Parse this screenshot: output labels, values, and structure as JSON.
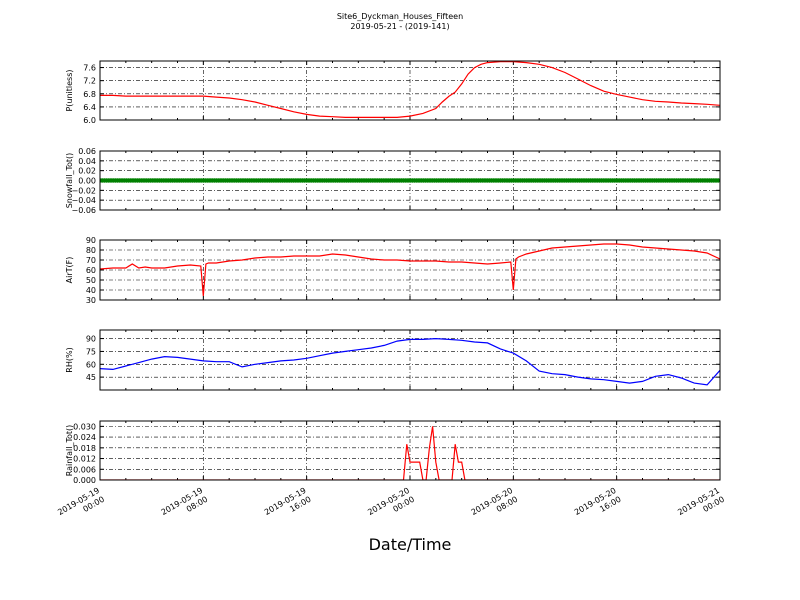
{
  "figure": {
    "title_line1": "Site6_Dyckman_Houses_Fifteen",
    "title_line2": "2019-05-21 - (2019-141)",
    "xlabel": "Date/Time",
    "x_ticks": [
      {
        "line1": "2019-05-19",
        "line2": "00:00"
      },
      {
        "line1": "2019-05-19",
        "line2": "08:00"
      },
      {
        "line1": "2019-05-19",
        "line2": "16:00"
      },
      {
        "line1": "2019-05-20",
        "line2": "00:00"
      },
      {
        "line1": "2019-05-20",
        "line2": "08:00"
      },
      {
        "line1": "2019-05-20",
        "line2": "16:00"
      },
      {
        "line1": "2019-05-21",
        "line2": "00:00"
      }
    ]
  },
  "chart_data": [
    {
      "type": "line",
      "ylabel": "P(unitless)",
      "ylim": [
        6.0,
        7.8
      ],
      "yticks": [
        6.0,
        6.4,
        6.8,
        7.2,
        7.6
      ],
      "ytick_labels": [
        "6.0",
        "6.4",
        "6.8",
        "7.2",
        "7.6"
      ],
      "xlim_hours": [
        0,
        48
      ],
      "color": "#ff0000",
      "grid": true,
      "x": [
        0,
        1,
        2,
        4,
        6,
        8,
        9,
        10,
        11,
        12,
        13,
        14,
        15,
        16,
        17,
        18,
        19,
        20,
        21,
        22,
        23,
        24,
        25,
        26,
        26.5,
        27,
        27.5,
        28,
        28.5,
        29,
        29.5,
        30,
        31,
        32,
        33,
        34,
        35,
        36,
        37,
        38,
        39,
        40,
        41,
        42,
        43,
        44,
        45,
        46,
        47,
        48
      ],
      "y": [
        6.75,
        6.75,
        6.73,
        6.73,
        6.73,
        6.73,
        6.7,
        6.67,
        6.62,
        6.55,
        6.45,
        6.35,
        6.25,
        6.17,
        6.12,
        6.1,
        6.08,
        6.08,
        6.08,
        6.08,
        6.08,
        6.12,
        6.2,
        6.35,
        6.55,
        6.72,
        6.85,
        7.1,
        7.4,
        7.6,
        7.7,
        7.75,
        7.78,
        7.78,
        7.75,
        7.7,
        7.6,
        7.45,
        7.25,
        7.05,
        6.88,
        6.78,
        6.7,
        6.62,
        6.57,
        6.55,
        6.52,
        6.5,
        6.48,
        6.45
      ]
    },
    {
      "type": "scatter",
      "ylabel": "Snowfall_Tot()",
      "ylim": [
        -0.06,
        0.06
      ],
      "yticks": [
        -0.06,
        -0.04,
        -0.02,
        0.0,
        0.02,
        0.04,
        0.06
      ],
      "ytick_labels": [
        "−0.06",
        "−0.04",
        "−0.02",
        "0.00",
        "0.02",
        "0.04",
        "0.06"
      ],
      "xlim_hours": [
        0,
        48
      ],
      "color": "#008000",
      "grid": true,
      "x": [
        0,
        48
      ],
      "y": [
        0,
        0
      ],
      "series_note_constant": 0.0
    },
    {
      "type": "line",
      "ylabel": "AirT(F)",
      "ylim": [
        30,
        90
      ],
      "yticks": [
        30,
        40,
        50,
        60,
        70,
        80,
        90
      ],
      "ytick_labels": [
        "30",
        "40",
        "50",
        "60",
        "70",
        "80",
        "90"
      ],
      "xlim_hours": [
        0,
        48
      ],
      "color": "#ff0000",
      "grid": true,
      "x": [
        0,
        1,
        2,
        2.5,
        3,
        3.5,
        4,
        5,
        6,
        7,
        7.8,
        8.0,
        8.2,
        8.4,
        9,
        10,
        11,
        12,
        13,
        14,
        15,
        16,
        17,
        18,
        19,
        20,
        21,
        22,
        23,
        24,
        25,
        26,
        27,
        28,
        29,
        30,
        31,
        31.8,
        32.0,
        32.2,
        32.4,
        33,
        34,
        35,
        36,
        37,
        38,
        39,
        40,
        41,
        42,
        43,
        44,
        45,
        46,
        47,
        48
      ],
      "y": [
        61,
        62,
        62,
        66,
        62,
        63,
        62,
        62,
        64,
        65,
        64,
        34,
        66,
        67,
        67,
        69,
        70,
        72,
        73,
        73,
        74,
        74,
        74,
        76,
        75,
        73,
        71,
        70,
        70,
        69,
        69,
        69,
        68,
        68,
        67,
        66,
        67,
        68,
        40,
        71,
        73,
        76,
        79,
        82,
        83,
        84,
        85,
        86,
        86,
        85,
        83,
        82,
        81,
        80,
        79,
        77,
        71
      ]
    },
    {
      "type": "line",
      "ylabel": "RH(%)",
      "ylim": [
        30,
        100
      ],
      "yticks": [
        45,
        60,
        75,
        90
      ],
      "ytick_labels": [
        "45",
        "60",
        "75",
        "90"
      ],
      "xlim_hours": [
        0,
        48
      ],
      "color": "#0000ff",
      "grid": true,
      "x": [
        0,
        1,
        2,
        3,
        4,
        5,
        6,
        7,
        8,
        9,
        10,
        11,
        12,
        13,
        14,
        15,
        16,
        17,
        18,
        19,
        20,
        21,
        22,
        23,
        24,
        25,
        26,
        27,
        28,
        29,
        30,
        31,
        32,
        33,
        34,
        35,
        36,
        37,
        38,
        39,
        40,
        41,
        42,
        43,
        44,
        45,
        46,
        47,
        48
      ],
      "y": [
        55,
        54,
        58,
        62,
        66,
        69,
        68,
        66,
        64,
        63,
        63,
        57,
        60,
        62,
        64,
        65,
        67,
        70,
        73,
        75,
        77,
        79,
        82,
        87,
        89,
        89,
        90,
        89,
        88,
        86,
        85,
        78,
        73,
        64,
        52,
        49,
        48,
        45,
        43,
        42,
        40,
        38,
        40,
        46,
        48,
        44,
        38,
        36,
        53
      ]
    },
    {
      "type": "line",
      "ylabel": "Rainfall_Tot()",
      "ylim": [
        0,
        0.033
      ],
      "yticks": [
        0.0,
        0.006,
        0.012,
        0.018,
        0.024,
        0.03
      ],
      "ytick_labels": [
        "0.000",
        "0.006",
        "0.012",
        "0.018",
        "0.024",
        "0.030"
      ],
      "xlim_hours": [
        0,
        48
      ],
      "color": "#ff0000",
      "grid": true,
      "x": [
        0,
        23.5,
        23.75,
        24,
        24.25,
        24.5,
        24.75,
        25,
        25.25,
        25.5,
        25.75,
        26,
        26.25,
        26.5,
        26.75,
        27,
        27.25,
        27.5,
        27.75,
        28,
        28.25,
        28.5,
        28.75,
        29,
        48
      ],
      "y": [
        0,
        0,
        0.02,
        0.01,
        0.01,
        0.01,
        0.01,
        0,
        0,
        0.018,
        0.03,
        0.01,
        0,
        0,
        0,
        0,
        0,
        0.02,
        0.01,
        0.01,
        0,
        0,
        0,
        0,
        0
      ]
    }
  ]
}
